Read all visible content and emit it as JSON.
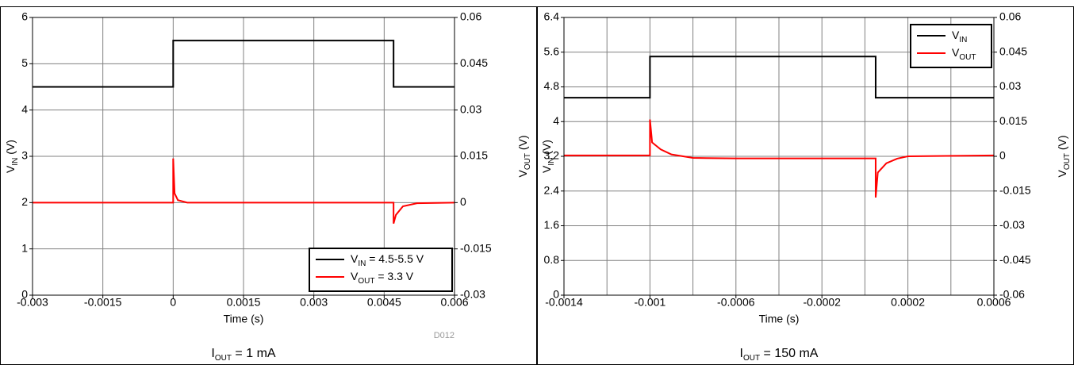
{
  "chart_data": [
    {
      "type": "line",
      "caption": [
        "I",
        "OUT",
        " = 1 mA"
      ],
      "xlabel": "Time (s)",
      "ylabel": [
        "V",
        "IN",
        " (V)"
      ],
      "y2label": [
        "V",
        "OUT",
        " (V)"
      ],
      "watermark": "D012",
      "xlim": [
        -0.003,
        0.006
      ],
      "xticks": [
        -0.003,
        -0.0015,
        0,
        0.0015,
        0.003,
        0.0045,
        0.006
      ],
      "ylim": [
        0,
        6
      ],
      "yticks": [
        0,
        1,
        2,
        3,
        4,
        5,
        6
      ],
      "y2lim": [
        -0.03,
        0.06
      ],
      "y2ticks": [
        -0.03,
        -0.015,
        0,
        0.015,
        0.03,
        0.045,
        0.06
      ],
      "grid": true,
      "legend": "lower right",
      "series": [
        {
          "name": [
            "V",
            "IN",
            " = 4.5-5.5 V"
          ],
          "color": "#000000",
          "x": [
            -0.003,
            0,
            0,
            0.0047,
            0.0047,
            0.006
          ],
          "values": [
            4.5,
            4.5,
            5.5,
            5.5,
            4.5,
            4.5
          ]
        },
        {
          "name": [
            "V",
            "OUT",
            " = 3.3 V"
          ],
          "color": "#ff0000",
          "axis": "y2",
          "x": [
            -0.003,
            0,
            0,
            3e-05,
            0.0001,
            0.0003,
            0.0047,
            0.0047,
            0.00475,
            0.0049,
            0.0052,
            0.006
          ],
          "values": [
            0,
            0,
            0.0143,
            0.003,
            0.0008,
            0,
            0,
            -0.0068,
            -0.004,
            -0.0012,
            -0.0002,
            0
          ]
        }
      ]
    },
    {
      "type": "line",
      "caption": [
        "I",
        "OUT",
        " = 150 mA"
      ],
      "xlabel": "Time (s)",
      "ylabel": [
        "V",
        "IN",
        " (V)"
      ],
      "y2label": [
        "V",
        "OUT",
        " (V)"
      ],
      "xlim": [
        -0.0014,
        0.0006
      ],
      "xticks": [
        -0.0014,
        -0.001,
        -0.0006,
        -0.0002,
        0.0002,
        0.0006
      ],
      "x_minor_ticks": [
        -0.0012,
        -0.0008,
        -0.0004,
        0,
        0.0004
      ],
      "ylim": [
        0,
        6.4
      ],
      "yticks": [
        0,
        0.8,
        1.6,
        2.4,
        3.2,
        4,
        4.8,
        5.6,
        6.4
      ],
      "y2lim": [
        -0.06,
        0.06
      ],
      "y2ticks": [
        -0.06,
        -0.045,
        -0.03,
        -0.015,
        0,
        0.015,
        0.03,
        0.045,
        0.06
      ],
      "grid": true,
      "legend": "upper right",
      "series": [
        {
          "name": [
            "V",
            "IN"
          ],
          "color": "#000000",
          "x": [
            -0.0014,
            -0.001,
            -0.001,
            5e-05,
            5e-05,
            0.0006
          ],
          "values": [
            4.55,
            4.55,
            5.5,
            5.5,
            4.55,
            4.55
          ]
        },
        {
          "name": [
            "V",
            "OUT"
          ],
          "color": "#ff0000",
          "axis": "y2",
          "x": [
            -0.0014,
            -0.001,
            -0.001,
            -0.00099,
            -0.00095,
            -0.0009,
            -0.0008,
            -0.0006,
            5e-05,
            5e-05,
            6e-05,
            0.0001,
            0.00015,
            0.0002,
            0.0006
          ],
          "values": [
            0.0004,
            0.0004,
            0.0159,
            0.006,
            0.003,
            0.0008,
            -0.0007,
            -0.0009,
            -0.0009,
            -0.0178,
            -0.007,
            -0.003,
            -0.001,
            0,
            0.0004
          ]
        }
      ]
    }
  ]
}
